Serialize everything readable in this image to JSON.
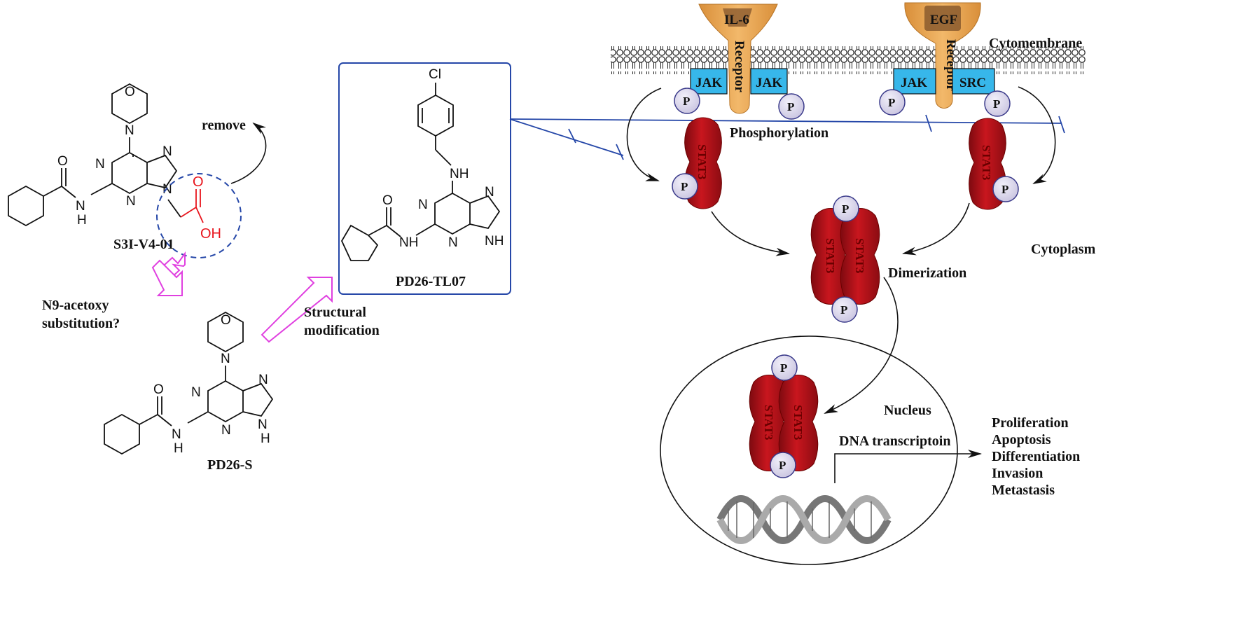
{
  "left": {
    "compound1": "S3I-V4-01",
    "remove": "remove",
    "q_line1": "N9-acetoxy",
    "q_line2": "substitution?",
    "compound2": "PD26-S",
    "mod_line1": "Structural",
    "mod_line2": "modification",
    "compound3": "PD26-TL07"
  },
  "atoms": {
    "O": "O",
    "N": "N",
    "H": "H",
    "NH": "NH",
    "OH": "OH",
    "Cl": "Cl"
  },
  "pathway": {
    "ligand1": "IL-6",
    "ligand2": "EGF",
    "receptor": "Receptor",
    "membrane": "Cytomembrane",
    "jak": "JAK",
    "src": "SRC",
    "p": "P",
    "stat3": "STAT3",
    "phosphorylation": "Phosphorylation",
    "dimerization": "Dimerization",
    "cytoplasm": "Cytoplasm",
    "nucleus": "Nucleus",
    "dna": "DNA transcriptoin",
    "outcomes": [
      "Proliferation",
      "Apoptosis",
      "Differentiation",
      "Invasion",
      "Metastasis"
    ]
  },
  "colors": {
    "stat3": "#b3121a",
    "jak": "#37b7ea",
    "receptor": "#e9a653",
    "phospho": "#d9d6ec",
    "inhibitor_line": "#2547a8",
    "conversion_arrow": "#e040e0",
    "acid": "#e8141c"
  }
}
